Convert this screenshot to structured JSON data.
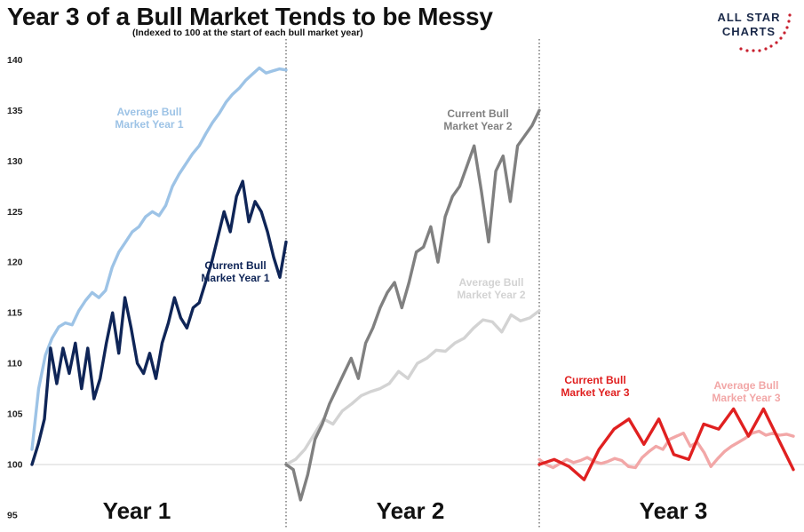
{
  "title": "Year 3 of a Bull Market Tends to be Messy",
  "subtitle": "(Indexed to 100 at the start of each bull market year)",
  "logo": {
    "line1": "ALL STAR",
    "line2": "CHARTS",
    "text_color": "#1b2a4a",
    "dot_color": "#c8202f"
  },
  "chart_data": {
    "type": "line",
    "ylim": [
      95,
      141
    ],
    "yticks": [
      95,
      100,
      105,
      110,
      115,
      120,
      125,
      130,
      135,
      140
    ],
    "baseline": 100,
    "panels": [
      {
        "label": "Year 1"
      },
      {
        "label": "Year 2"
      },
      {
        "label": "Year 3"
      }
    ],
    "series": [
      {
        "name": "Average Bull Market Year 1",
        "panel": 0,
        "label_lines": [
          "Average Bull",
          "Market Year 1"
        ],
        "color": "#9dc3e6",
        "values": [
          101.5,
          107.5,
          110.8,
          112.5,
          113.6,
          114,
          113.8,
          115.2,
          116.2,
          117.0,
          116.5,
          117.2,
          119.5,
          121.0,
          122.0,
          123.0,
          123.5,
          124.5,
          125.0,
          124.6,
          125.6,
          127.5,
          128.7,
          129.7,
          130.7,
          131.5,
          132.7,
          133.8,
          134.7,
          135.8,
          136.6,
          137.2,
          138.0,
          138.6,
          139.2,
          138.7,
          138.9,
          139.1,
          139.0
        ]
      },
      {
        "name": "Current Bull Market Year 1",
        "panel": 0,
        "label_lines": [
          "Current Bull",
          "Market Year 1"
        ],
        "color": "#0f2557",
        "values": [
          100,
          102.0,
          104.5,
          111.5,
          108,
          111.5,
          109,
          112,
          107.5,
          111.5,
          106.5,
          108.5,
          112,
          115,
          111,
          116.5,
          113.5,
          110,
          109,
          111,
          108.5,
          112,
          114,
          116.5,
          114.5,
          113.5,
          115.5,
          116,
          118,
          120,
          122.5,
          125,
          123,
          126.5,
          128,
          124,
          126,
          125,
          123,
          120.5,
          118.5,
          122
        ]
      },
      {
        "name": "Current Bull Market Year 2",
        "panel": 1,
        "label_lines": [
          "Current Bull",
          "Market Year 2"
        ],
        "color": "#808080",
        "values": [
          100,
          99.5,
          96.5,
          99,
          102.5,
          104,
          106,
          107.5,
          109,
          110.5,
          108.5,
          112,
          113.5,
          115.5,
          117,
          118,
          115.5,
          118,
          121,
          121.5,
          123.5,
          120,
          124.5,
          126.5,
          127.5,
          129.5,
          131.5,
          127,
          122,
          129,
          130.5,
          126,
          131.5,
          132.5,
          133.5,
          135
        ]
      },
      {
        "name": "Average Bull Market Year 2",
        "panel": 1,
        "label_lines": [
          "Average Bull",
          "Market Year 2"
        ],
        "color": "#d3d3d3",
        "values": [
          100,
          100.5,
          101.5,
          103,
          104.5,
          104,
          105.3,
          106,
          106.8,
          107.2,
          107.5,
          108,
          109.2,
          108.5,
          110,
          110.5,
          111.3,
          111.2,
          112,
          112.5,
          113.5,
          114.3,
          114.1,
          113.1,
          114.8,
          114.2,
          114.5,
          115.2
        ]
      },
      {
        "name": "Current Bull Market Year 3",
        "panel": 2,
        "label_lines": [
          "Current Bull",
          "Market Year 3"
        ],
        "color": "#e02020",
        "values": [
          100,
          100.5,
          99.8,
          98.5,
          101.5,
          103.5,
          104.5,
          102,
          104.5,
          101,
          100.5,
          104,
          103.5,
          105.5,
          102.8,
          105.5,
          102.5,
          99.5
        ]
      },
      {
        "name": "Average Bull Market Year 3",
        "panel": 2,
        "label_lines": [
          "Average Bull",
          "Market Year 3"
        ],
        "color": "#f2a7a7",
        "values": [
          100.5,
          100,
          99.7,
          100.1,
          100.5,
          100.2,
          100.4,
          100.7,
          100.3,
          100.1,
          100.3,
          100.6,
          100.4,
          99.8,
          99.7,
          100.7,
          101.3,
          101.8,
          101.5,
          102.5,
          102.8,
          103.1,
          101.8,
          102.2,
          101.2,
          99.8,
          100.6,
          101.3,
          101.8,
          102.2,
          102.6,
          103.1,
          103.3,
          102.9,
          103.1,
          102.9,
          103.0,
          102.8
        ]
      }
    ]
  }
}
